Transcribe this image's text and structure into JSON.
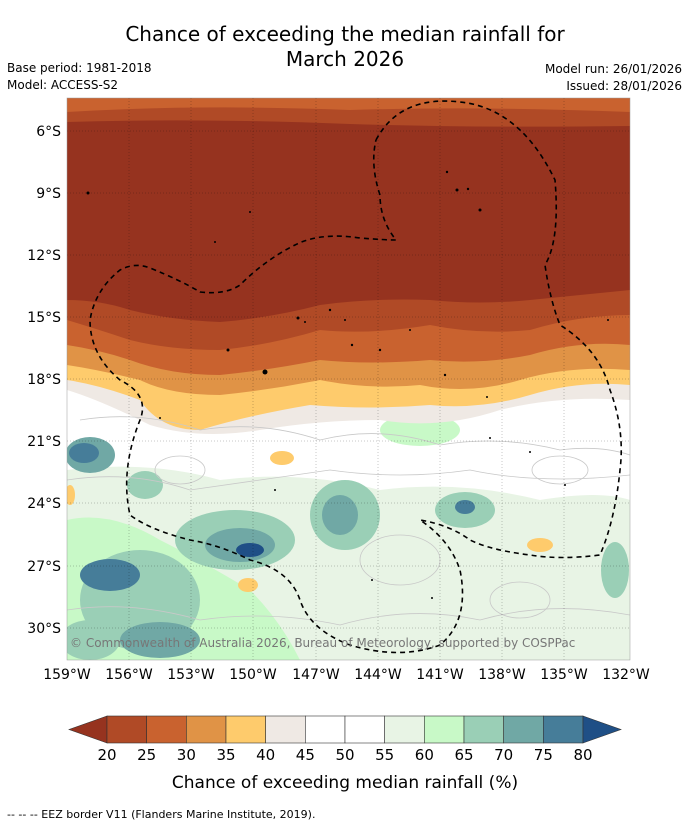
{
  "header": {
    "title_line1": "Chance of exceeding the median rainfall for",
    "title_line2": "March 2026",
    "base_period": "Base period: 1981-2018",
    "model": "Model: ACCESS-S2",
    "model_run": "Model run: 26/01/2026",
    "issued": "Issued: 28/01/2026"
  },
  "map": {
    "lat_labels": [
      "6°S",
      "9°S",
      "12°S",
      "15°S",
      "18°S",
      "21°S",
      "24°S",
      "27°S",
      "30°S"
    ],
    "lon_labels": [
      "159°W",
      "156°W",
      "153°W",
      "150°W",
      "147°W",
      "144°W",
      "141°W",
      "138°W",
      "135°W",
      "132°W"
    ],
    "copyright": "© Commonwealth of Australia 2026, Bureau of Meteorology, supported by COSPPac"
  },
  "colorbar": {
    "ticks": [
      "20",
      "25",
      "30",
      "35",
      "40",
      "45",
      "50",
      "55",
      "60",
      "65",
      "70",
      "75",
      "80"
    ],
    "label": "Chance of exceeding median rainfall (%)",
    "colors": [
      "#96331f",
      "#b04a26",
      "#c9622f",
      "#e09346",
      "#fecb6c",
      "#efe9e4",
      "#ffffff",
      "#ffffff",
      "#e8f4e5",
      "#c8f9c7",
      "#9acfb6",
      "#70a8a5",
      "#467d99",
      "#1f4f86"
    ]
  },
  "footer": {
    "legend_line": "--  --  -- EEZ border V11 (Flanders Marine Institute, 2019)."
  }
}
